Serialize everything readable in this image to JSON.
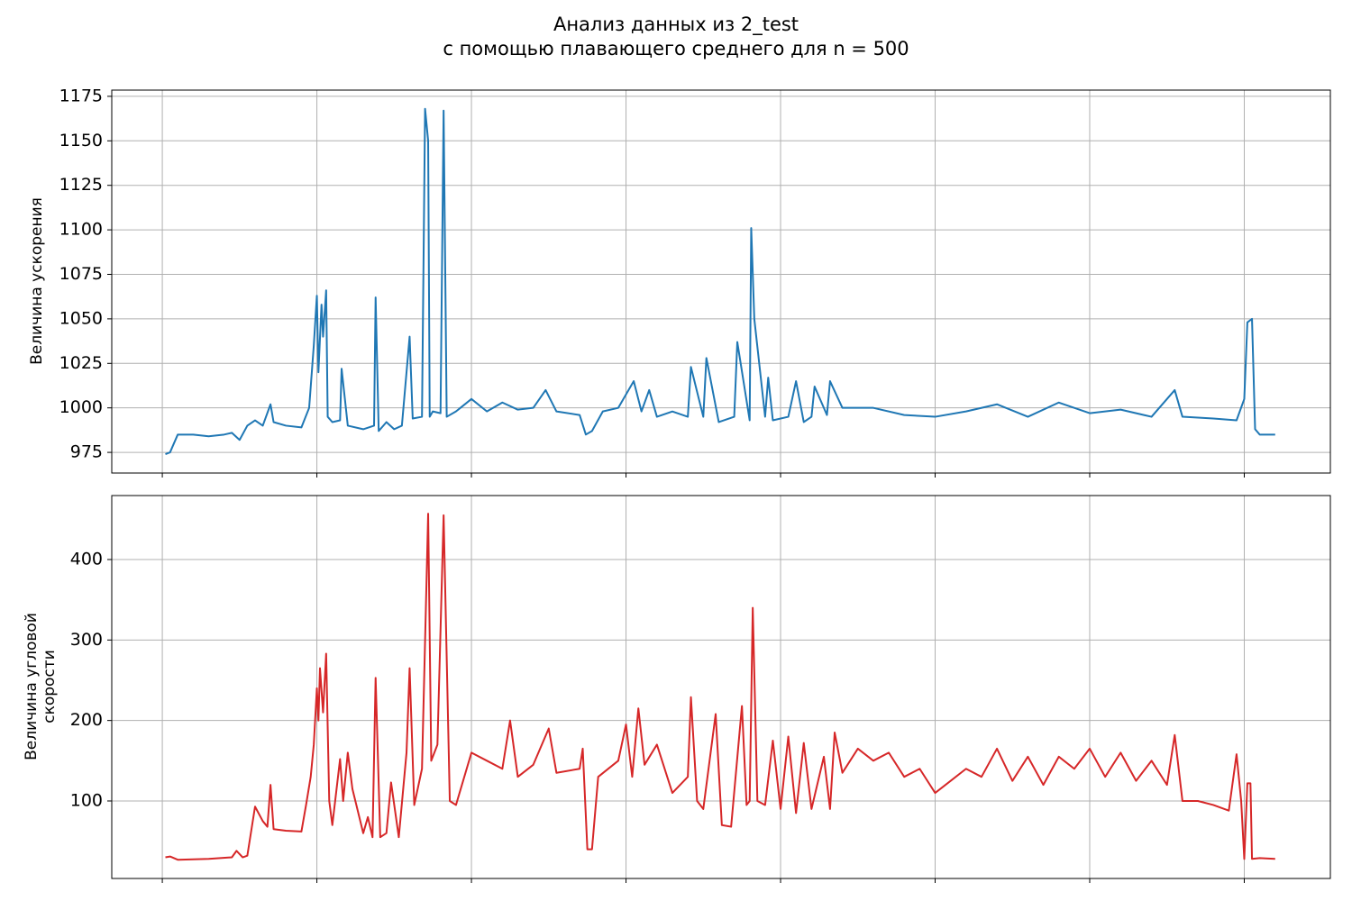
{
  "chart_data": [
    {
      "type": "line",
      "title": "Анализ данных из 2_test\nс помощью плавающего среднего для n = 500",
      "y_label": "Величина ускорения",
      "x": [
        0.02,
        0.05,
        0.1,
        0.2,
        0.3,
        0.4,
        0.45,
        0.5,
        0.55,
        0.6,
        0.65,
        0.7,
        0.72,
        0.8,
        0.9,
        0.95,
        0.98,
        1.0,
        1.01,
        1.03,
        1.04,
        1.06,
        1.07,
        1.1,
        1.15,
        1.16,
        1.2,
        1.3,
        1.37,
        1.38,
        1.4,
        1.45,
        1.5,
        1.55,
        1.6,
        1.62,
        1.68,
        1.7,
        1.72,
        1.73,
        1.75,
        1.8,
        1.82,
        1.84,
        1.9,
        2.0,
        2.1,
        2.2,
        2.3,
        2.4,
        2.48,
        2.55,
        2.7,
        2.74,
        2.78,
        2.85,
        2.95,
        3.05,
        3.1,
        3.15,
        3.2,
        3.3,
        3.4,
        3.42,
        3.5,
        3.52,
        3.6,
        3.7,
        3.72,
        3.8,
        3.81,
        3.83,
        3.9,
        3.92,
        3.95,
        4.05,
        4.1,
        4.15,
        4.2,
        4.22,
        4.3,
        4.32,
        4.4,
        4.6,
        4.8,
        5.0,
        5.2,
        5.4,
        5.6,
        5.8,
        6.0,
        6.2,
        6.4,
        6.55,
        6.6,
        6.8,
        6.95,
        7.0,
        7.02,
        7.05,
        7.07,
        7.1,
        7.2
      ],
      "series": [
        {
          "color": "#1f77b4",
          "values": [
            974,
            975,
            985,
            985,
            984,
            985,
            986,
            982,
            990,
            993,
            990,
            1002,
            992,
            990,
            989,
            1000,
            1035,
            1063,
            1020,
            1058,
            1040,
            1066,
            995,
            992,
            993,
            1022,
            990,
            988,
            990,
            1062,
            987,
            992,
            988,
            990,
            1040,
            994,
            995,
            1168,
            1150,
            995,
            998,
            997,
            1167,
            995,
            998,
            1005,
            998,
            1003,
            999,
            1000,
            1010,
            998,
            996,
            985,
            987,
            998,
            1000,
            1015,
            998,
            1010,
            995,
            998,
            995,
            1023,
            995,
            1028,
            992,
            995,
            1037,
            993,
            1101,
            1050,
            995,
            1017,
            993,
            995,
            1015,
            992,
            995,
            1012,
            996,
            1015,
            1000,
            1000,
            996,
            995,
            998,
            1002,
            995,
            1003,
            997,
            999,
            995,
            1010,
            995,
            994,
            993,
            1005,
            1048,
            1050,
            988,
            985,
            985
          ]
        }
      ],
      "xlim": [
        -0.327,
        7.557
      ],
      "xticks": [
        0,
        1,
        2,
        3,
        4,
        5,
        6,
        7
      ],
      "xtick_labels": false,
      "ylim": [
        963.4,
        1178.5
      ],
      "yticks": [
        975,
        1000,
        1025,
        1050,
        1075,
        1100,
        1125,
        1150,
        1175
      ],
      "grid": true
    },
    {
      "type": "line",
      "y_label": "Величина угловой\nскорости",
      "x": [
        0.02,
        0.05,
        0.1,
        0.3,
        0.45,
        0.48,
        0.52,
        0.55,
        0.6,
        0.65,
        0.68,
        0.7,
        0.72,
        0.8,
        0.9,
        0.93,
        0.96,
        0.98,
        1.0,
        1.01,
        1.02,
        1.04,
        1.06,
        1.08,
        1.1,
        1.15,
        1.17,
        1.2,
        1.23,
        1.3,
        1.33,
        1.36,
        1.38,
        1.41,
        1.45,
        1.48,
        1.53,
        1.58,
        1.6,
        1.63,
        1.68,
        1.72,
        1.74,
        1.78,
        1.82,
        1.86,
        1.9,
        2.0,
        2.1,
        2.2,
        2.25,
        2.3,
        2.4,
        2.5,
        2.55,
        2.7,
        2.72,
        2.75,
        2.78,
        2.82,
        2.95,
        3.0,
        3.04,
        3.08,
        3.12,
        3.2,
        3.3,
        3.4,
        3.42,
        3.46,
        3.5,
        3.58,
        3.62,
        3.68,
        3.75,
        3.78,
        3.8,
        3.82,
        3.85,
        3.9,
        3.95,
        4.0,
        4.05,
        4.1,
        4.15,
        4.2,
        4.28,
        4.32,
        4.35,
        4.4,
        4.5,
        4.6,
        4.7,
        4.8,
        4.9,
        5.0,
        5.1,
        5.2,
        5.3,
        5.4,
        5.5,
        5.6,
        5.7,
        5.8,
        5.9,
        6.0,
        6.1,
        6.2,
        6.3,
        6.4,
        6.5,
        6.55,
        6.6,
        6.7,
        6.8,
        6.9,
        6.95,
        6.98,
        7.0,
        7.02,
        7.04,
        7.05,
        7.1,
        7.2
      ],
      "series": [
        {
          "color": "#d62728",
          "values": [
            30,
            31,
            27,
            28,
            30,
            38,
            30,
            32,
            93,
            75,
            68,
            120,
            65,
            63,
            62,
            95,
            130,
            170,
            240,
            200,
            265,
            210,
            283,
            100,
            70,
            152,
            100,
            160,
            115,
            60,
            80,
            55,
            253,
            55,
            60,
            123,
            55,
            160,
            265,
            95,
            140,
            457,
            150,
            170,
            455,
            100,
            95,
            160,
            150,
            140,
            200,
            130,
            145,
            190,
            135,
            140,
            165,
            40,
            40,
            130,
            150,
            195,
            130,
            215,
            145,
            170,
            110,
            130,
            229,
            100,
            90,
            208,
            70,
            68,
            218,
            95,
            100,
            340,
            100,
            95,
            175,
            90,
            180,
            85,
            172,
            90,
            155,
            90,
            185,
            135,
            165,
            150,
            160,
            130,
            140,
            110,
            125,
            140,
            130,
            165,
            125,
            155,
            120,
            155,
            140,
            165,
            130,
            160,
            125,
            150,
            120,
            182,
            100,
            100,
            95,
            88,
            158,
            100,
            28,
            122,
            122,
            28,
            29,
            28
          ]
        }
      ],
      "xlim": [
        -0.327,
        7.557
      ],
      "xticks": [
        0,
        1,
        2,
        3,
        4,
        5,
        6,
        7
      ],
      "xtick_labels": false,
      "ylim": [
        3.7,
        479.5
      ],
      "yticks": [
        100,
        200,
        300,
        400
      ],
      "grid": true
    }
  ]
}
